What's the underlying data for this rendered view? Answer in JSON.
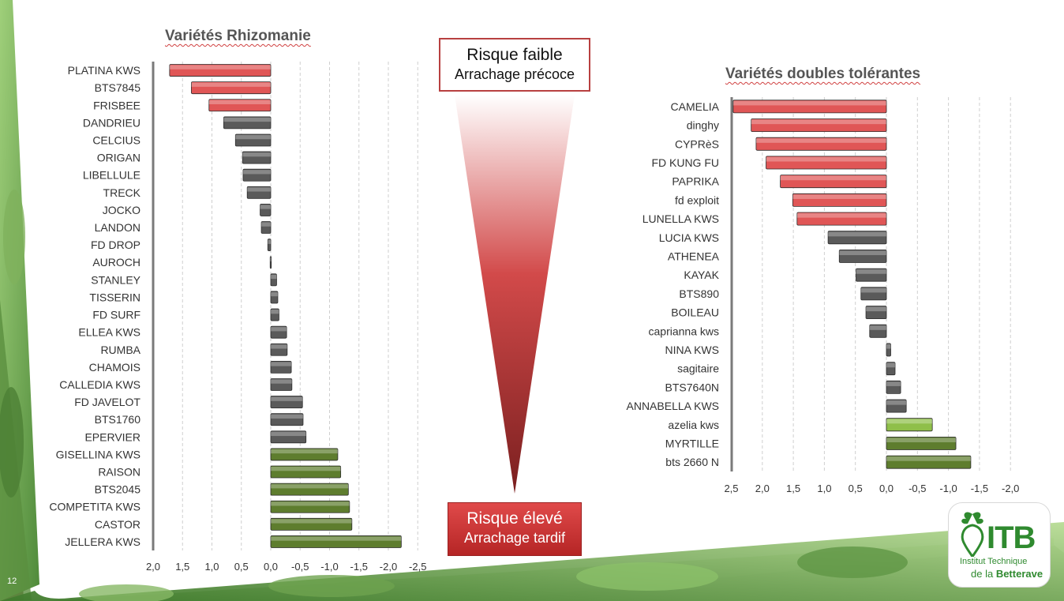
{
  "slide": {
    "page_number": "12",
    "risk_low": {
      "line1": "Risque faible",
      "line2": "Arrachage précoce"
    },
    "risk_high": {
      "line1": "Risque élevé",
      "line2": "Arrachage tardif"
    },
    "logo": {
      "brand": "ITB",
      "line1": "Institut Technique",
      "line2_prefix": "de la ",
      "line2_bold": "Betterave"
    }
  },
  "colors": {
    "red": "#e05656",
    "gray": "#5a5a5a",
    "green": "#5e7d2e",
    "light_green": "#8fbf4a",
    "title": "#555555"
  },
  "chart_data": [
    {
      "type": "bar",
      "orientation": "horizontal",
      "title": "Variétés Rhizomanie",
      "x_axis_reversed": true,
      "xlim": [
        2.0,
        -2.5
      ],
      "xticks": [
        "2,0",
        "1,5",
        "1,0",
        "0,5",
        "0,0",
        "-0,5",
        "-1,0",
        "-1,5",
        "-2,0",
        "-2,5"
      ],
      "grid": "vertical dashed",
      "categories": [
        "PLATINA KWS",
        "BTS7845",
        "FRISBEE",
        "DANDRIEU",
        "CELCIUS",
        "ORIGAN",
        "LIBELLULE",
        "TRECK",
        "JOCKO",
        "LANDON",
        "FD DROP",
        "AUROCH",
        "STANLEY",
        "TISSERIN",
        "FD SURF",
        "ELLEA KWS",
        "RUMBA",
        "CHAMOIS",
        "CALLEDIA KWS",
        "FD JAVELOT",
        "BTS1760",
        "EPERVIER",
        "GISELLINA KWS",
        "RAISON",
        "BTS2045",
        "COMPETITA KWS",
        "CASTOR",
        "JELLERA KWS"
      ],
      "values": [
        1.72,
        1.35,
        1.05,
        0.8,
        0.6,
        0.48,
        0.47,
        0.4,
        0.18,
        0.16,
        0.05,
        0.01,
        -0.1,
        -0.12,
        -0.14,
        -0.27,
        -0.28,
        -0.35,
        -0.36,
        -0.54,
        -0.55,
        -0.6,
        -1.14,
        -1.19,
        -1.32,
        -1.34,
        -1.38,
        -2.22
      ],
      "colors": [
        "red",
        "red",
        "red",
        "gray",
        "gray",
        "gray",
        "gray",
        "gray",
        "gray",
        "gray",
        "gray",
        "gray",
        "gray",
        "gray",
        "gray",
        "gray",
        "gray",
        "gray",
        "gray",
        "gray",
        "gray",
        "gray",
        "green",
        "green",
        "green",
        "green",
        "green",
        "green"
      ]
    },
    {
      "type": "bar",
      "orientation": "horizontal",
      "title": "Variétés doubles tolérantes",
      "x_axis_reversed": true,
      "xlim": [
        2.5,
        -2.0
      ],
      "xticks": [
        "2,5",
        "2,0",
        "1,5",
        "1,0",
        "0,5",
        "0,0",
        "-0,5",
        "-1,0",
        "-1,5",
        "-2,0"
      ],
      "grid": "vertical dashed",
      "categories": [
        "CAMELIA",
        "dinghy",
        "CYPRèS",
        "FD KUNG FU",
        "PAPRIKA",
        "fd exploit",
        "LUNELLA KWS",
        "LUCIA KWS",
        "ATHENEA",
        "KAYAK",
        "BTS890",
        "BOILEAU",
        "caprianna kws",
        "NINA KWS",
        "sagitaire",
        "BTS7640N",
        "ANNABELLA KWS",
        "azelia kws",
        "MYRTILLE",
        "bts 2660 N"
      ],
      "values": [
        2.47,
        2.18,
        2.1,
        1.94,
        1.71,
        1.51,
        1.44,
        0.94,
        0.76,
        0.49,
        0.41,
        0.33,
        0.27,
        -0.07,
        -0.14,
        -0.23,
        -0.32,
        -0.74,
        -1.12,
        -1.36
      ],
      "colors": [
        "red",
        "red",
        "red",
        "red",
        "red",
        "red",
        "red",
        "gray",
        "gray",
        "gray",
        "gray",
        "gray",
        "gray",
        "gray",
        "gray",
        "gray",
        "gray",
        "light_green",
        "green",
        "green"
      ]
    }
  ]
}
